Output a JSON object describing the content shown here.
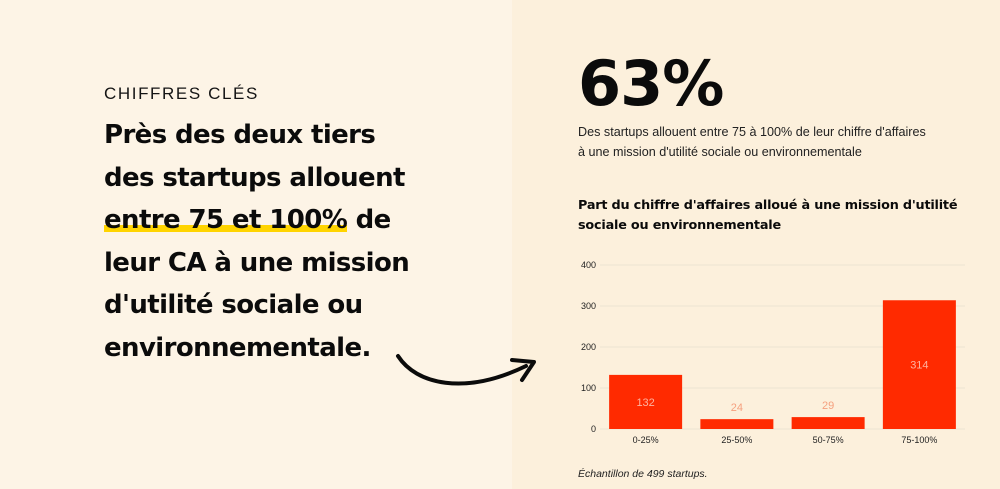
{
  "left": {
    "eyebrow": "CHIFFRES CLÉS",
    "headline": {
      "line1": "Près des deux tiers",
      "line2": "des startups allouent",
      "line3_highlight": "entre 75 et 100%",
      "line3_rest": " de",
      "line4": "leur CA à une mission",
      "line5": "d'utilité sociale ou",
      "line6": "environnementale."
    },
    "arrow_icon": "curved-arrow-right-icon",
    "highlight_color": "#ffd400"
  },
  "right": {
    "stat": "63%",
    "stat_desc_line1": "Des startups allouent entre 75 à 100% de leur chiffre d'affaires",
    "stat_desc_line2": "à une mission d'utilité sociale ou environnementale",
    "footnote": "Échantillon de 499 startups."
  },
  "chart_data": {
    "type": "bar",
    "title_line1": "Part du chiffre d'affaires alloué à une mission d'utilité",
    "title_line2": "sociale ou environnementale",
    "categories": [
      "0-25%",
      "25-50%",
      "50-75%",
      "75-100%"
    ],
    "values": [
      132,
      24,
      29,
      314
    ],
    "ylim": [
      0,
      400
    ],
    "yticks": [
      0,
      100,
      200,
      300,
      400
    ],
    "grid": true,
    "bar_color": "#ff2a00",
    "label_color_inside": "#ffb3a0",
    "label_color_outside": "#f5a07e"
  }
}
